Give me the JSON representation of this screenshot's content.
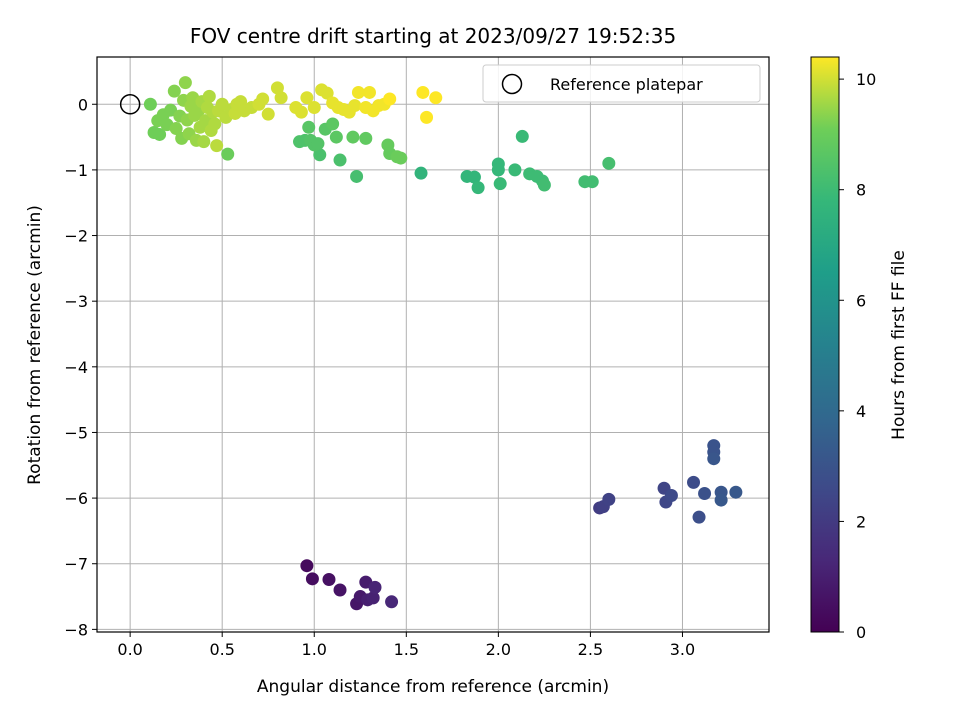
{
  "chart_data": {
    "type": "scatter",
    "title": "FOV centre drift starting at 2023/09/27 19:52:35",
    "xlabel": "Angular distance from reference (arcmin)",
    "ylabel": "Rotation from reference (arcmin)",
    "xlim": [
      -0.18,
      3.47
    ],
    "ylim": [
      -8.04,
      0.72
    ],
    "xticks": [
      0.0,
      0.5,
      1.0,
      1.5,
      2.0,
      2.5,
      3.0
    ],
    "xtick_labels": [
      "0.0",
      "0.5",
      "1.0",
      "1.5",
      "2.0",
      "2.5",
      "3.0"
    ],
    "yticks": [
      0,
      -1,
      -2,
      -3,
      -4,
      -5,
      -6,
      -7,
      -8
    ],
    "ytick_labels": [
      "0",
      "−1",
      "−2",
      "−3",
      "−4",
      "−5",
      "−6",
      "−7",
      "−8"
    ],
    "grid": true,
    "colormap": "viridis",
    "colorbar": {
      "label": "Hours from first FF file",
      "range": [
        0,
        10.4
      ],
      "ticks": [
        0,
        2,
        4,
        6,
        8,
        10
      ],
      "tick_labels": [
        "0",
        "2",
        "4",
        "6",
        "8",
        "10"
      ]
    },
    "reference": {
      "name": "Reference platepar",
      "x": 0.0,
      "y": 0.0
    },
    "legend": {
      "placement": "upper right",
      "entries": [
        "Reference platepar"
      ]
    },
    "points": [
      {
        "x": 0.96,
        "y": -7.03,
        "h": 0.3
      },
      {
        "x": 0.99,
        "y": -7.23,
        "h": 0.4
      },
      {
        "x": 1.08,
        "y": -7.24,
        "h": 0.5
      },
      {
        "x": 1.14,
        "y": -7.4,
        "h": 0.6
      },
      {
        "x": 1.23,
        "y": -7.61,
        "h": 0.7
      },
      {
        "x": 1.25,
        "y": -7.5,
        "h": 0.8
      },
      {
        "x": 1.28,
        "y": -7.28,
        "h": 0.9
      },
      {
        "x": 1.29,
        "y": -7.55,
        "h": 1.0
      },
      {
        "x": 1.32,
        "y": -7.52,
        "h": 1.1
      },
      {
        "x": 1.33,
        "y": -7.36,
        "h": 1.2
      },
      {
        "x": 1.42,
        "y": -7.58,
        "h": 1.3
      },
      {
        "x": 2.55,
        "y": -6.15,
        "h": 2.1
      },
      {
        "x": 2.57,
        "y": -6.13,
        "h": 2.2
      },
      {
        "x": 2.6,
        "y": -6.02,
        "h": 2.3
      },
      {
        "x": 2.9,
        "y": -5.85,
        "h": 2.4
      },
      {
        "x": 2.91,
        "y": -6.06,
        "h": 2.5
      },
      {
        "x": 2.94,
        "y": -5.96,
        "h": 2.6
      },
      {
        "x": 3.06,
        "y": -5.76,
        "h": 2.7
      },
      {
        "x": 3.09,
        "y": -6.29,
        "h": 2.8
      },
      {
        "x": 3.12,
        "y": -5.93,
        "h": 2.9
      },
      {
        "x": 3.17,
        "y": -5.2,
        "h": 3.0
      },
      {
        "x": 3.17,
        "y": -5.3,
        "h": 3.0
      },
      {
        "x": 3.17,
        "y": -5.4,
        "h": 3.1
      },
      {
        "x": 3.21,
        "y": -5.91,
        "h": 3.1
      },
      {
        "x": 3.21,
        "y": -6.03,
        "h": 3.2
      },
      {
        "x": 3.29,
        "y": -5.91,
        "h": 3.2
      },
      {
        "x": 1.58,
        "y": -1.05,
        "h": 7.6
      },
      {
        "x": 1.83,
        "y": -1.1,
        "h": 7.7
      },
      {
        "x": 1.87,
        "y": -1.11,
        "h": 7.7
      },
      {
        "x": 1.89,
        "y": -1.27,
        "h": 7.8
      },
      {
        "x": 2.0,
        "y": -0.91,
        "h": 7.8
      },
      {
        "x": 2.0,
        "y": -1.0,
        "h": 7.8
      },
      {
        "x": 2.01,
        "y": -1.21,
        "h": 7.9
      },
      {
        "x": 2.09,
        "y": -1.0,
        "h": 7.9
      },
      {
        "x": 2.13,
        "y": -0.49,
        "h": 7.9
      },
      {
        "x": 2.17,
        "y": -1.06,
        "h": 8.0
      },
      {
        "x": 2.21,
        "y": -1.1,
        "h": 8.0
      },
      {
        "x": 2.24,
        "y": -1.17,
        "h": 8.0
      },
      {
        "x": 2.25,
        "y": -1.23,
        "h": 8.1
      },
      {
        "x": 2.47,
        "y": -1.18,
        "h": 8.1
      },
      {
        "x": 2.51,
        "y": -1.18,
        "h": 8.1
      },
      {
        "x": 2.6,
        "y": -0.9,
        "h": 8.2
      },
      {
        "x": 1.23,
        "y": -1.1,
        "h": 8.2
      },
      {
        "x": 1.14,
        "y": -0.85,
        "h": 8.3
      },
      {
        "x": 1.03,
        "y": -0.77,
        "h": 8.3
      },
      {
        "x": 0.92,
        "y": -0.57,
        "h": 8.4
      },
      {
        "x": 0.95,
        "y": -0.55,
        "h": 8.4
      },
      {
        "x": 0.98,
        "y": -0.55,
        "h": 8.5
      },
      {
        "x": 1.0,
        "y": -0.62,
        "h": 8.5
      },
      {
        "x": 1.02,
        "y": -0.6,
        "h": 8.5
      },
      {
        "x": 0.97,
        "y": -0.35,
        "h": 8.6
      },
      {
        "x": 1.06,
        "y": -0.38,
        "h": 8.6
      },
      {
        "x": 1.1,
        "y": -0.3,
        "h": 8.7
      },
      {
        "x": 1.12,
        "y": -0.5,
        "h": 8.7
      },
      {
        "x": 1.21,
        "y": -0.5,
        "h": 8.8
      },
      {
        "x": 1.28,
        "y": -0.52,
        "h": 8.8
      },
      {
        "x": 1.4,
        "y": -0.62,
        "h": 8.9
      },
      {
        "x": 1.41,
        "y": -0.75,
        "h": 8.9
      },
      {
        "x": 1.45,
        "y": -0.8,
        "h": 9.0
      },
      {
        "x": 1.47,
        "y": -0.82,
        "h": 9.0
      },
      {
        "x": 0.53,
        "y": -0.76,
        "h": 9.0
      },
      {
        "x": 0.11,
        "y": 0.0,
        "h": 9.1
      },
      {
        "x": 0.13,
        "y": -0.43,
        "h": 9.1
      },
      {
        "x": 0.16,
        "y": -0.46,
        "h": 9.1
      },
      {
        "x": 0.15,
        "y": -0.25,
        "h": 9.2
      },
      {
        "x": 0.18,
        "y": -0.16,
        "h": 9.2
      },
      {
        "x": 0.2,
        "y": -0.31,
        "h": 9.2
      },
      {
        "x": 0.22,
        "y": -0.09,
        "h": 9.2
      },
      {
        "x": 0.24,
        "y": 0.2,
        "h": 9.3
      },
      {
        "x": 0.25,
        "y": -0.37,
        "h": 9.3
      },
      {
        "x": 0.27,
        "y": -0.18,
        "h": 9.3
      },
      {
        "x": 0.28,
        "y": -0.52,
        "h": 9.3
      },
      {
        "x": 0.29,
        "y": 0.06,
        "h": 9.4
      },
      {
        "x": 0.3,
        "y": 0.33,
        "h": 9.4
      },
      {
        "x": 0.31,
        "y": -0.24,
        "h": 9.4
      },
      {
        "x": 0.32,
        "y": -0.45,
        "h": 9.4
      },
      {
        "x": 0.33,
        "y": -0.03,
        "h": 9.5
      },
      {
        "x": 0.34,
        "y": 0.1,
        "h": 9.5
      },
      {
        "x": 0.35,
        "y": -0.17,
        "h": 9.5
      },
      {
        "x": 0.36,
        "y": -0.55,
        "h": 9.5
      },
      {
        "x": 0.37,
        "y": -0.1,
        "h": 9.5
      },
      {
        "x": 0.38,
        "y": -0.35,
        "h": 9.6
      },
      {
        "x": 0.39,
        "y": 0.04,
        "h": 9.6
      },
      {
        "x": 0.4,
        "y": -0.57,
        "h": 9.6
      },
      {
        "x": 0.41,
        "y": -0.25,
        "h": 9.6
      },
      {
        "x": 0.42,
        "y": -0.05,
        "h": 9.7
      },
      {
        "x": 0.43,
        "y": 0.12,
        "h": 9.7
      },
      {
        "x": 0.44,
        "y": -0.4,
        "h": 9.7
      },
      {
        "x": 0.45,
        "y": -0.12,
        "h": 9.7
      },
      {
        "x": 0.46,
        "y": -0.3,
        "h": 9.7
      },
      {
        "x": 0.47,
        "y": -0.63,
        "h": 9.8
      },
      {
        "x": 0.48,
        "y": -0.1,
        "h": 9.8
      },
      {
        "x": 0.5,
        "y": 0.0,
        "h": 9.8
      },
      {
        "x": 0.52,
        "y": -0.2,
        "h": 9.8
      },
      {
        "x": 0.55,
        "y": -0.08,
        "h": 9.8
      },
      {
        "x": 0.57,
        "y": -0.14,
        "h": 9.9
      },
      {
        "x": 0.58,
        "y": 0.0,
        "h": 9.9
      },
      {
        "x": 0.6,
        "y": 0.04,
        "h": 9.9
      },
      {
        "x": 0.62,
        "y": -0.1,
        "h": 9.9
      },
      {
        "x": 0.66,
        "y": -0.05,
        "h": 9.9
      },
      {
        "x": 0.7,
        "y": 0.0,
        "h": 10.0
      },
      {
        "x": 0.72,
        "y": 0.08,
        "h": 10.0
      },
      {
        "x": 0.75,
        "y": -0.15,
        "h": 10.0
      },
      {
        "x": 0.8,
        "y": 0.25,
        "h": 10.0
      },
      {
        "x": 0.82,
        "y": 0.1,
        "h": 10.0
      },
      {
        "x": 0.9,
        "y": -0.05,
        "h": 10.1
      },
      {
        "x": 0.93,
        "y": -0.12,
        "h": 10.1
      },
      {
        "x": 0.96,
        "y": 0.1,
        "h": 10.1
      },
      {
        "x": 1.0,
        "y": -0.05,
        "h": 10.1
      },
      {
        "x": 1.04,
        "y": 0.22,
        "h": 10.1
      },
      {
        "x": 1.07,
        "y": 0.17,
        "h": 10.1
      },
      {
        "x": 1.1,
        "y": 0.02,
        "h": 10.2
      },
      {
        "x": 1.13,
        "y": -0.05,
        "h": 10.2
      },
      {
        "x": 1.16,
        "y": -0.08,
        "h": 10.2
      },
      {
        "x": 1.19,
        "y": -0.12,
        "h": 10.2
      },
      {
        "x": 1.22,
        "y": -0.02,
        "h": 10.2
      },
      {
        "x": 1.24,
        "y": 0.18,
        "h": 10.3
      },
      {
        "x": 1.28,
        "y": -0.05,
        "h": 10.3
      },
      {
        "x": 1.3,
        "y": 0.18,
        "h": 10.3
      },
      {
        "x": 1.32,
        "y": -0.1,
        "h": 10.3
      },
      {
        "x": 1.35,
        "y": -0.02,
        "h": 10.3
      },
      {
        "x": 1.38,
        "y": 0.0,
        "h": 10.3
      },
      {
        "x": 1.41,
        "y": 0.08,
        "h": 10.4
      },
      {
        "x": 1.59,
        "y": 0.18,
        "h": 10.4
      },
      {
        "x": 1.61,
        "y": -0.2,
        "h": 10.4
      },
      {
        "x": 1.66,
        "y": 0.1,
        "h": 10.4
      }
    ]
  }
}
